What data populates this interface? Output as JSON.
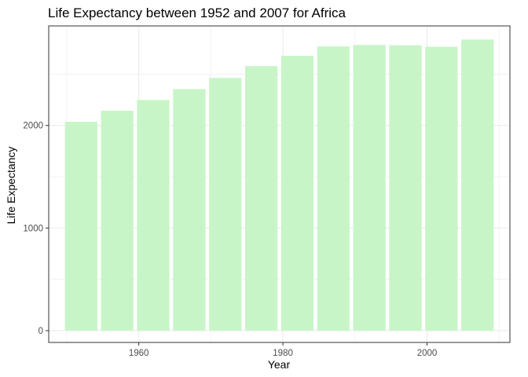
{
  "chart_data": {
    "type": "bar",
    "title": "Life Expectancy between 1952 and 2007 for Africa",
    "xlabel": "Year",
    "ylabel": "Life Expectancy",
    "x": [
      1952,
      1957,
      1962,
      1967,
      1972,
      1977,
      1982,
      1987,
      1992,
      1997,
      2002,
      2007
    ],
    "values": [
      2035.2,
      2144.0,
      2248.1,
      2354.5,
      2463.2,
      2578.5,
      2679.0,
      2770.6,
      2784.1,
      2782.0,
      2767.2,
      2837.3
    ],
    "bar_width_years": 4.5,
    "xlim": [
      1947.5,
      2011.5
    ],
    "ylim": [
      -115,
      2970
    ],
    "x_ticks": [
      1960,
      1980,
      2000
    ],
    "y_ticks": [
      0,
      1000,
      2000
    ],
    "x_minor_ticks": [
      1950,
      1970,
      1990,
      2010
    ],
    "y_minor_ticks": [
      500,
      1500,
      2500
    ],
    "grid": true,
    "theme": "bw",
    "bar_color": "#c8f5c8",
    "panel_border_color": "#333333",
    "grid_color": "#ebebeb",
    "legend": "none"
  }
}
